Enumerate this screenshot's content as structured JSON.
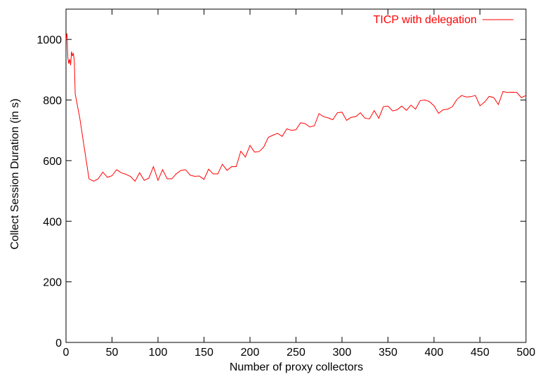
{
  "chart_data": {
    "type": "line",
    "xlabel": "Number of proxy collectors",
    "ylabel": "Collect Session Duration (in s)",
    "xlim": [
      0,
      500
    ],
    "ylim": [
      0,
      1100
    ],
    "x_ticks": [
      0,
      50,
      100,
      150,
      200,
      250,
      300,
      350,
      400,
      450,
      500
    ],
    "y_ticks": [
      0,
      200,
      400,
      600,
      800,
      1000
    ],
    "grid": false,
    "legend_position": "top-right",
    "colors": {
      "series": "#ff0000",
      "axes": "#000000"
    },
    "series": [
      {
        "name": "TICP with delegation",
        "x": [
          0,
          1,
          2,
          3,
          4,
          5,
          6,
          7,
          8,
          9,
          10,
          15,
          20,
          25,
          30,
          35,
          40,
          45,
          50,
          55,
          60,
          65,
          70,
          75,
          80,
          85,
          90,
          95,
          100,
          105,
          110,
          115,
          120,
          125,
          130,
          135,
          140,
          145,
          150,
          155,
          160,
          165,
          170,
          175,
          180,
          185,
          190,
          195,
          200,
          205,
          210,
          215,
          220,
          225,
          230,
          235,
          240,
          245,
          250,
          255,
          260,
          265,
          270,
          275,
          280,
          285,
          290,
          295,
          300,
          305,
          310,
          315,
          320,
          325,
          330,
          335,
          340,
          345,
          350,
          355,
          360,
          365,
          370,
          375,
          380,
          385,
          390,
          395,
          400,
          405,
          410,
          415,
          420,
          425,
          430,
          435,
          440,
          445,
          450,
          455,
          460,
          465,
          470,
          475,
          480,
          485,
          490,
          495,
          500
        ],
        "values": [
          1000,
          1020,
          940,
          920,
          935,
          915,
          960,
          945,
          955,
          930,
          820,
          740,
          640,
          540,
          532,
          540,
          562,
          545,
          550,
          570,
          560,
          555,
          548,
          532,
          560,
          535,
          542,
          580,
          535,
          570,
          540,
          540,
          557,
          568,
          570,
          552,
          548,
          549,
          538,
          572,
          556,
          556,
          588,
          568,
          580,
          580,
          631,
          612,
          650,
          628,
          630,
          645,
          677,
          684,
          690,
          680,
          705,
          700,
          702,
          725,
          722,
          711,
          715,
          755,
          745,
          741,
          735,
          758,
          760,
          733,
          743,
          745,
          758,
          740,
          738,
          765,
          740,
          778,
          780,
          764,
          768,
          780,
          766,
          783,
          770,
          798,
          800,
          795,
          781,
          756,
          768,
          770,
          778,
          802,
          815,
          810,
          811,
          815,
          781,
          793,
          812,
          808,
          785,
          828,
          825,
          826,
          825,
          808,
          815
        ]
      }
    ]
  }
}
